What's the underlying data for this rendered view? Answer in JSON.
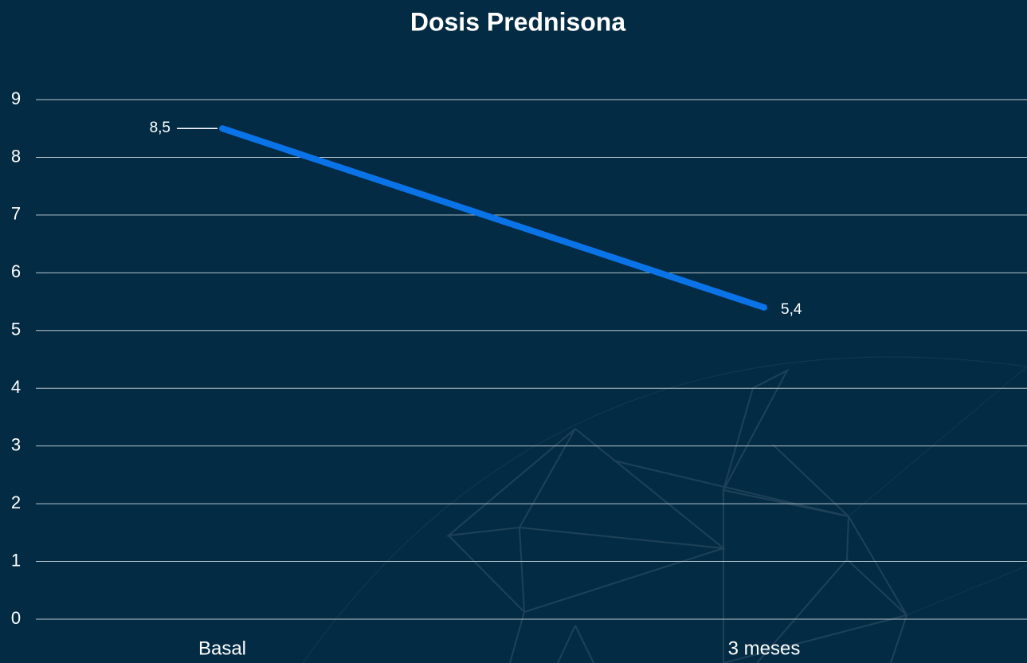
{
  "chart_data": {
    "type": "line",
    "title": "Dosis Prednisona",
    "categories": [
      "Basal",
      "3 meses"
    ],
    "values": [
      8.5,
      5.4
    ],
    "value_labels": [
      "8,5",
      "5,4"
    ],
    "color": "#0a73e8",
    "ylim": [
      0,
      9
    ],
    "yticks": [
      0,
      1,
      2,
      3,
      4,
      5,
      6,
      7,
      8,
      9
    ],
    "grid": true
  }
}
